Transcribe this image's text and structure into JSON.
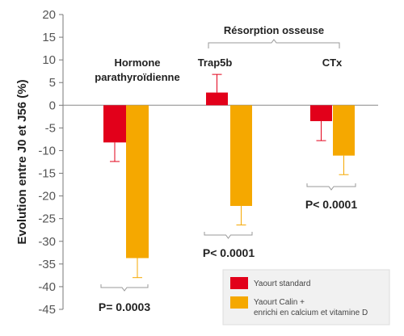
{
  "chart_data": {
    "type": "bar",
    "ylabel": "Evolution entre  J0 et J56 (%)",
    "ylim": [
      -45,
      20
    ],
    "yticks": [
      20,
      15,
      10,
      5,
      0,
      -5,
      -10,
      -15,
      -20,
      -25,
      -30,
      -35,
      -40,
      -45
    ],
    "categories": [
      "Hormone parathyroïdienne",
      "Trap5b",
      "CTx"
    ],
    "category_label_lines": [
      [
        "Hormone",
        "parathyroïdienne"
      ],
      [
        "Trap5b"
      ],
      [
        "CTx"
      ]
    ],
    "bracket_label": "Résorption osseuse",
    "series": [
      {
        "name": "Yaourt standard",
        "legend_lines": [
          "Yaourt standard"
        ],
        "color": "#e2001a",
        "values": [
          -8.2,
          2.8,
          -3.5
        ],
        "errors": [
          4.2,
          4.0,
          4.3
        ]
      },
      {
        "name": "Yaourt Calin + enrichi en calcium et vitamine D",
        "legend_lines": [
          "Yaourt Calin +",
          "enrichi en calcium et vitamine D"
        ],
        "color": "#f5a800",
        "values": [
          -33.7,
          -22.2,
          -11.1
        ],
        "errors": [
          4.3,
          4.2,
          4.2
        ]
      }
    ],
    "pvalues": [
      "P= 0.0003",
      "P< 0.0001",
      "P< 0.0001"
    ],
    "legend_position": "bottom-right"
  }
}
